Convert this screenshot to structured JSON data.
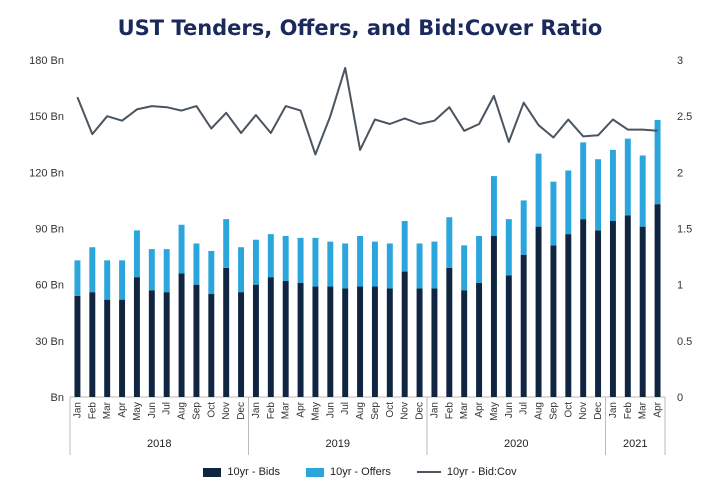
{
  "colors": {
    "bids": "#0f2540",
    "offers": "#2aa6dc",
    "ratio": "#4a5560",
    "axis": "#bbbbbb"
  },
  "chart_data": {
    "type": "bar",
    "title": "UST Tenders, Offers, and Bid:Cover Ratio",
    "stacked": true,
    "categories": [
      "Jan",
      "Feb",
      "Mar",
      "Apr",
      "May",
      "Jun",
      "Jul",
      "Aug",
      "Sep",
      "Oct",
      "Nov",
      "Dec",
      "Jan",
      "Feb",
      "Mar",
      "Apr",
      "May",
      "Jun",
      "Jul",
      "Aug",
      "Sep",
      "Oct",
      "Nov",
      "Dec",
      "Jan",
      "Feb",
      "Mar",
      "Apr",
      "May",
      "Jun",
      "Jul",
      "Aug",
      "Sep",
      "Oct",
      "Nov",
      "Dec",
      "Jan",
      "Feb",
      "Mar",
      "Apr"
    ],
    "year_groups": [
      {
        "label": "2018",
        "start": 0,
        "end": 11
      },
      {
        "label": "2019",
        "start": 12,
        "end": 23
      },
      {
        "label": "2020",
        "start": 24,
        "end": 35
      },
      {
        "label": "2021",
        "start": 36,
        "end": 39
      }
    ],
    "series": [
      {
        "name": "10yr - Bids",
        "type": "bar",
        "axis": "left",
        "values": [
          54,
          56,
          52,
          52,
          64,
          57,
          56,
          66,
          60,
          55,
          69,
          56,
          60,
          64,
          62,
          61,
          59,
          59,
          58,
          59,
          59,
          58,
          67,
          58,
          58,
          69,
          57,
          61,
          86,
          65,
          76,
          91,
          81,
          87,
          95,
          89,
          94,
          97,
          91,
          103
        ]
      },
      {
        "name": "10yr - Offers",
        "type": "bar",
        "axis": "left",
        "values": [
          19,
          24,
          21,
          21,
          25,
          22,
          23,
          26,
          22,
          23,
          26,
          24,
          24,
          23,
          24,
          24,
          26,
          24,
          24,
          27,
          24,
          24,
          27,
          24,
          25,
          27,
          24,
          25,
          32,
          30,
          29,
          39,
          34,
          34,
          41,
          38,
          38,
          41,
          38,
          45
        ]
      },
      {
        "name": "10yr - Bid:Cov",
        "type": "line",
        "axis": "right",
        "values": [
          2.67,
          2.34,
          2.5,
          2.46,
          2.56,
          2.59,
          2.58,
          2.55,
          2.59,
          2.39,
          2.53,
          2.35,
          2.51,
          2.35,
          2.59,
          2.55,
          2.16,
          2.5,
          2.93,
          2.2,
          2.47,
          2.43,
          2.48,
          2.43,
          2.46,
          2.58,
          2.37,
          2.43,
          2.68,
          2.27,
          2.62,
          2.42,
          2.31,
          2.47,
          2.32,
          2.33,
          2.47,
          2.38,
          2.38,
          2.37
        ]
      }
    ],
    "y_left": {
      "min": 0,
      "max": 180,
      "ticks": [
        0,
        30,
        60,
        90,
        120,
        150,
        180
      ],
      "tick_labels": [
        "Bn",
        "30 Bn",
        "60 Bn",
        "90 Bn",
        "120 Bn",
        "150 Bn",
        "180 Bn"
      ]
    },
    "y_right": {
      "min": 0,
      "max": 3,
      "ticks": [
        0,
        0.5,
        1,
        1.5,
        2,
        2.5,
        3
      ],
      "tick_labels": [
        "0",
        "0.5",
        "1",
        "1.5",
        "2",
        "2.5",
        "3"
      ]
    },
    "grid": false,
    "legend": {
      "position": "bottom",
      "labels": [
        "10yr - Bids",
        "10yr - Offers",
        "10yr - Bid:Cov"
      ]
    }
  }
}
